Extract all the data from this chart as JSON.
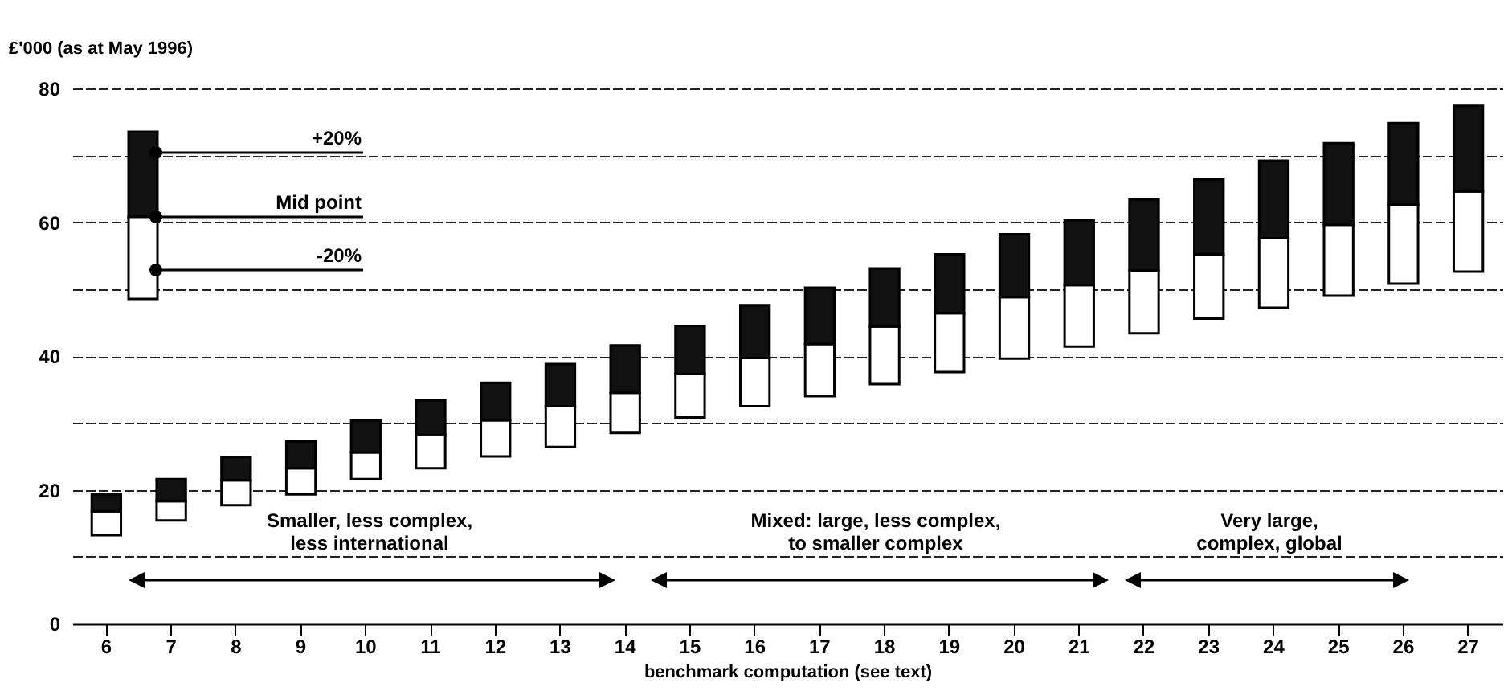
{
  "chart_data": {
    "type": "bar",
    "ylabel": "£'000 (as at May 1996)",
    "xlabel": "benchmark computation (see text)",
    "categories": [
      "6",
      "7",
      "8",
      "9",
      "10",
      "11",
      "12",
      "13",
      "14",
      "15",
      "16",
      "17",
      "18",
      "19",
      "20",
      "21",
      "22",
      "23",
      "24",
      "25",
      "26",
      "27"
    ],
    "series": [
      {
        "color": "#ffffff",
        "base": [
          13.2,
          15.4,
          17.7,
          19.3,
          21.6,
          23.2,
          25.0,
          26.4,
          28.5,
          30.8,
          32.5,
          34.0,
          35.8,
          37.6,
          39.6,
          41.4,
          43.4,
          45.6,
          47.2,
          49.0,
          50.8,
          52.6
        ],
        "values": [
          3.6,
          2.9,
          3.7,
          3.9,
          4.0,
          5.0,
          5.4,
          6.1,
          6.0,
          6.5,
          7.2,
          7.8,
          8.6,
          8.8,
          9.2,
          9.2,
          9.4,
          9.6,
          10.4,
          10.6,
          11.8,
          12.0
        ]
      },
      {
        "color": "#111111",
        "base": [
          16.8,
          18.3,
          21.4,
          23.2,
          25.6,
          28.2,
          30.4,
          32.5,
          34.5,
          37.3,
          39.7,
          41.8,
          44.4,
          46.4,
          48.8,
          50.6,
          52.8,
          55.2,
          57.6,
          59.6,
          62.6,
          64.6
        ],
        "values": [
          2.5,
          3.3,
          3.5,
          4.0,
          4.8,
          5.2,
          5.6,
          6.3,
          7.1,
          7.2,
          7.9,
          8.4,
          8.7,
          8.8,
          9.4,
          9.7,
          10.6,
          11.2,
          11.6,
          12.2,
          12.2,
          12.8
        ]
      }
    ],
    "ylim": [
      0,
      80
    ],
    "yticks": [
      0,
      {
        "value": 10,
        "label": null
      },
      20,
      {
        "value": 30,
        "label": null
      },
      40,
      {
        "value": 50,
        "label": null
      },
      60,
      {
        "value": 70,
        "label": null
      },
      80
    ],
    "grid": "y",
    "legend": false,
    "annotations": [
      "+20%",
      "Mid point",
      "-20%",
      "Smaller, less complex,\nless international",
      "Mixed: large, less complex,\nto smaller complex",
      "Very large,\ncomplex, global"
    ]
  }
}
